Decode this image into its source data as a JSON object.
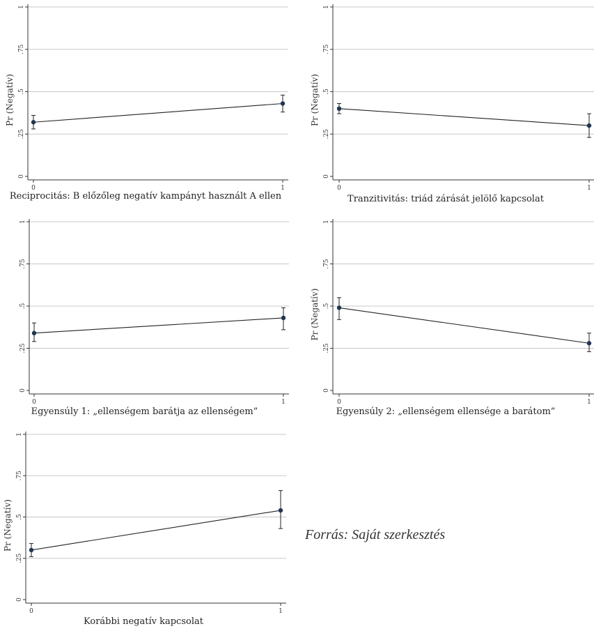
{
  "chart_data": [
    {
      "type": "line",
      "ylabel": "Pr (Negatív)",
      "xlabel": "Reciprocitás: B előzőleg negatív kampányt használt A ellen",
      "x": [
        0,
        1
      ],
      "x_tick_labels": [
        "0",
        "1"
      ],
      "y_ticks": [
        0,
        0.25,
        0.5,
        0.75,
        1
      ],
      "y_tick_labels": [
        "0",
        ".25",
        ".5",
        ".75",
        "1"
      ],
      "ylim": [
        0,
        1
      ],
      "values": [
        0.32,
        0.43
      ],
      "ci_low": [
        0.28,
        0.38
      ],
      "ci_high": [
        0.36,
        0.48
      ],
      "grid": true
    },
    {
      "type": "line",
      "ylabel": "Pr (Negatív)",
      "xlabel": "Tranzitivitás: triád zárását jelölő kapcsolat",
      "x": [
        0,
        1
      ],
      "x_tick_labels": [
        "0",
        "1"
      ],
      "y_ticks": [
        0,
        0.25,
        0.5,
        0.75,
        1
      ],
      "y_tick_labels": [
        "0",
        ".25",
        ".5",
        ".75",
        "1"
      ],
      "ylim": [
        0,
        1
      ],
      "values": [
        0.4,
        0.3
      ],
      "ci_low": [
        0.37,
        0.23
      ],
      "ci_high": [
        0.43,
        0.37
      ],
      "grid": true
    },
    {
      "type": "line",
      "ylabel": "",
      "xlabel": "Egyensúly 1: „ellenségem barátja az ellenségem”",
      "x": [
        0,
        1
      ],
      "x_tick_labels": [
        "0",
        "1"
      ],
      "y_ticks": [
        0,
        0.25,
        0.5,
        0.75,
        1
      ],
      "y_tick_labels": [
        "0",
        ".25",
        ".5",
        ".75",
        "1"
      ],
      "ylim": [
        0,
        1
      ],
      "values": [
        0.34,
        0.43
      ],
      "ci_low": [
        0.29,
        0.36
      ],
      "ci_high": [
        0.4,
        0.49
      ],
      "grid": true
    },
    {
      "type": "line",
      "ylabel": "Pr (Negatív)",
      "xlabel": "Egyensúly 2: „ellenségem ellensége a barátom”",
      "x": [
        0,
        1
      ],
      "x_tick_labels": [
        "0",
        "1"
      ],
      "y_ticks": [
        0,
        0.25,
        0.5,
        0.75,
        1
      ],
      "y_tick_labels": [
        "0",
        ".25",
        ".5",
        ".75",
        "1"
      ],
      "ylim": [
        0,
        1
      ],
      "values": [
        0.49,
        0.28
      ],
      "ci_low": [
        0.42,
        0.23
      ],
      "ci_high": [
        0.55,
        0.34
      ],
      "grid": true
    },
    {
      "type": "line",
      "ylabel": "Pr (Negatív)",
      "xlabel": "Korábbi negatív kapcsolat",
      "x": [
        0,
        1
      ],
      "x_tick_labels": [
        "0",
        "1"
      ],
      "y_ticks": [
        0,
        0.25,
        0.5,
        0.75,
        1
      ],
      "y_tick_labels": [
        "0",
        ".25",
        ".5",
        ".75",
        "1"
      ],
      "ylim": [
        0,
        1
      ],
      "values": [
        0.3,
        0.54
      ],
      "ci_low": [
        0.26,
        0.43
      ],
      "ci_high": [
        0.34,
        0.66
      ],
      "grid": true
    }
  ],
  "source_note": "Forrás: Saját szerkesztés",
  "colors": {
    "point": "#1f3552",
    "line": "#222222",
    "grid": "#c8c8c8"
  }
}
